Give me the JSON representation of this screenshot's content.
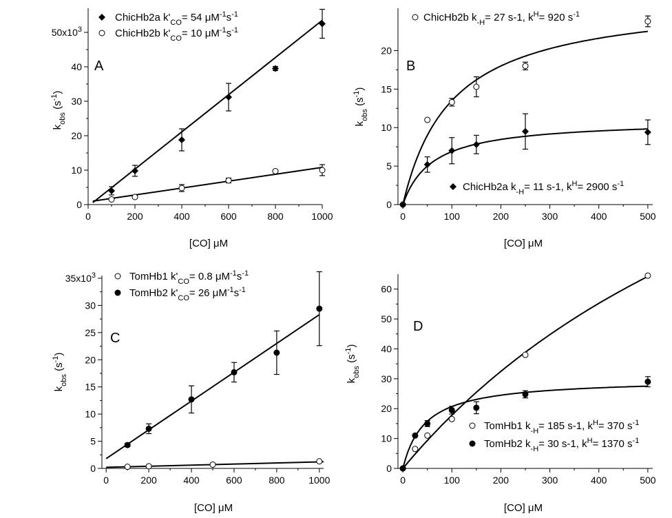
{
  "chart_data": [
    {
      "panel": "A",
      "type": "scatter",
      "x_unit_label": "[CO] μM",
      "y_label": "kobs (s-1)",
      "y_label_main": "k",
      "y_label_sub": "obs",
      "y_label_unit": "(s",
      "y_label_unit_sup": "-1",
      "y_label_close": ")",
      "y_exponent_label": "50x10",
      "y_exponent_sup": "3",
      "xlim": [
        0,
        1000
      ],
      "ylim": [
        0,
        57000
      ],
      "xticks": [
        0,
        200,
        400,
        600,
        800,
        1000
      ],
      "yticks": [
        0,
        10000,
        20000,
        30000,
        40000,
        50000
      ],
      "ytick_labels": [
        "0",
        "10",
        "20",
        "30",
        "40",
        ""
      ],
      "series": [
        {
          "name": "ChicHb2a k'CO= 54 μM-1s-1",
          "legend_parts": [
            "ChicHb2a k'",
            "CO",
            "= 54 ",
            "μ",
            "M",
            "-1",
            "s",
            "-1"
          ],
          "marker": "filled-diamond",
          "x": [
            100,
            200,
            400,
            600,
            800,
            1000
          ],
          "y": [
            4000,
            9800,
            18800,
            31200,
            39500,
            52500
          ],
          "err": [
            1200,
            1600,
            3200,
            4000,
            600,
            4200
          ],
          "fit": {
            "type": "linear",
            "x_range": [
              20,
              1000
            ],
            "slope": 54,
            "intercept": -500
          }
        },
        {
          "name": "ChicHb2b k'CO= 10 μM-1s-1",
          "legend_parts": [
            "ChicHb2b k'",
            "CO",
            "= 10 ",
            "μ",
            "M",
            "-1",
            "s",
            "-1"
          ],
          "marker": "open-circle",
          "x": [
            100,
            200,
            400,
            600,
            800,
            1000
          ],
          "y": [
            1500,
            2200,
            4800,
            7000,
            9700,
            10000
          ],
          "err": [
            300,
            400,
            1000,
            700,
            400,
            1600
          ],
          "fit": {
            "type": "linear",
            "x_range": [
              20,
              1000
            ],
            "slope": 10,
            "intercept": 800
          }
        }
      ]
    },
    {
      "panel": "B",
      "type": "scatter",
      "x_unit_label": "[CO] μM",
      "y_label": "kobs (s-1)",
      "y_label_main": "k",
      "y_label_sub": "obs",
      "y_label_unit": "(s",
      "y_label_unit_sup": "-1",
      "y_label_close": ")",
      "xlim": [
        -10,
        510
      ],
      "ylim": [
        0,
        25.5
      ],
      "xticks": [
        0,
        100,
        200,
        300,
        400,
        500
      ],
      "yticks": [
        0,
        5,
        10,
        15,
        20
      ],
      "series": [
        {
          "name": "ChicHb2b k-H= 27 s-1, kH= 920 s-1",
          "legend_parts": [
            "ChicHb2b k",
            "-H",
            "= 27 s",
            "-1",
            ", k",
            "H",
            "= 920 s",
            "-1"
          ],
          "marker": "open-circle",
          "x": [
            0,
            50,
            100,
            150,
            250,
            500
          ],
          "y": [
            0,
            11,
            13.3,
            15.3,
            18,
            23.8
          ],
          "err": [
            0,
            0,
            0.5,
            1.3,
            0.5,
            0.7
          ],
          "fit": {
            "type": "hyperbolic",
            "k_minus_H": 27,
            "Kd_uM": 100
          }
        },
        {
          "name": "ChicHb2a k-H= 11 s-1, kH= 2900 s-1",
          "legend_parts": [
            "ChicHb2a k",
            "-H",
            "= 11 s",
            "-1",
            ", k",
            "H",
            "= 2900 s",
            "-1"
          ],
          "marker": "filled-diamond",
          "x": [
            0,
            50,
            100,
            150,
            250,
            500
          ],
          "y": [
            0,
            5.2,
            7,
            7.8,
            9.5,
            9.4
          ],
          "err": [
            0,
            1,
            1.7,
            1.2,
            2.3,
            1.6
          ],
          "fit": {
            "type": "hyperbolic",
            "k_minus_H": 11,
            "Kd_uM": 60
          }
        }
      ]
    },
    {
      "panel": "C",
      "type": "scatter",
      "x_unit_label": "[CO] μM",
      "y_label": "kobs (s-1)",
      "y_label_main": "k",
      "y_label_sub": "obs",
      "y_label_unit": "(s",
      "y_label_unit_sup": "-1",
      "y_label_close": ")",
      "y_exponent_label": "35x10",
      "y_exponent_sup": "3",
      "xlim": [
        -20,
        1020
      ],
      "ylim": [
        0,
        35500
      ],
      "xticks": [
        0,
        200,
        400,
        600,
        800,
        1000
      ],
      "yticks": [
        0,
        5000,
        10000,
        15000,
        20000,
        25000,
        30000,
        35000
      ],
      "ytick_labels": [
        "0",
        "5",
        "10",
        "15",
        "20",
        "25",
        "30",
        ""
      ],
      "series": [
        {
          "name": "TomHb1 k'CO= 0.8 μM-1s-1",
          "legend_parts": [
            "TomHb1 k'",
            "CO",
            "= 0.8  ",
            "μ",
            "M",
            "-1",
            "s",
            "-1"
          ],
          "marker": "open-circle",
          "x": [
            100,
            200,
            500,
            1000
          ],
          "y": [
            300,
            400,
            700,
            1300
          ],
          "err": [
            0,
            0,
            0,
            0
          ],
          "fit": {
            "type": "linear",
            "x_range": [
              0,
              1020
            ],
            "slope": 1,
            "intercept": 200
          }
        },
        {
          "name": "TomHb2 k'CO= 26 μM-1s-1",
          "legend_parts": [
            "TomHb2 k'",
            "CO",
            "= 26 ",
            "μ",
            "M",
            "-1",
            "s",
            "-1"
          ],
          "marker": "filled-circle",
          "x": [
            100,
            200,
            400,
            600,
            800,
            1000
          ],
          "y": [
            4300,
            7300,
            12700,
            17700,
            21300,
            29400
          ],
          "err": [
            300,
            900,
            2500,
            1800,
            4000,
            6800
          ],
          "fit": {
            "type": "linear",
            "x_range": [
              0,
              1000
            ],
            "slope": 26.5,
            "intercept": 1800
          }
        }
      ]
    },
    {
      "panel": "D",
      "type": "scatter",
      "x_unit_label": "[CO] μM",
      "y_label": "kobs (s-1)",
      "y_label_main": "k",
      "y_label_sub": "obs",
      "y_label_unit": "(s",
      "y_label_unit_sup": "-1",
      "y_label_close": ")",
      "xlim": [
        -10,
        510
      ],
      "ylim": [
        0,
        65
      ],
      "xticks": [
        0,
        100,
        200,
        300,
        400,
        500
      ],
      "yticks": [
        0,
        10,
        20,
        30,
        40,
        50,
        60
      ],
      "series": [
        {
          "name": "TomHb1 k-H= 185 s-1, kH= 370 s-1",
          "legend_parts": [
            "TomHb1 k",
            "-H",
            "= 185 s",
            "-1",
            ", k",
            "H",
            "= 370 s",
            "-1"
          ],
          "marker": "open-circle",
          "x": [
            0,
            25,
            50,
            100,
            250,
            500
          ],
          "y": [
            0,
            6.5,
            11,
            16.5,
            38,
            64.5
          ],
          "err": [
            0,
            0,
            0,
            0,
            0,
            0
          ],
          "fit": {
            "type": "hyperbolic",
            "k_minus_H": 185,
            "Kd_uM": 940
          }
        },
        {
          "name": "TomHb2 k-H= 30 s-1, kH= 1370 s-1",
          "legend_parts": [
            "TomHb2 k",
            "-H",
            "= 30 s",
            "-1",
            ", k",
            "H",
            "= 1370 s",
            "-1"
          ],
          "marker": "filled-circle",
          "x": [
            0,
            25,
            50,
            100,
            150,
            250,
            500
          ],
          "y": [
            0,
            11,
            15,
            19.5,
            20.3,
            24.8,
            29
          ],
          "err": [
            0,
            0,
            1,
            1.3,
            2,
            1.2,
            1.7
          ],
          "fit": {
            "type": "hyperbolic",
            "k_minus_H": 30,
            "Kd_uM": 45
          }
        }
      ]
    }
  ]
}
